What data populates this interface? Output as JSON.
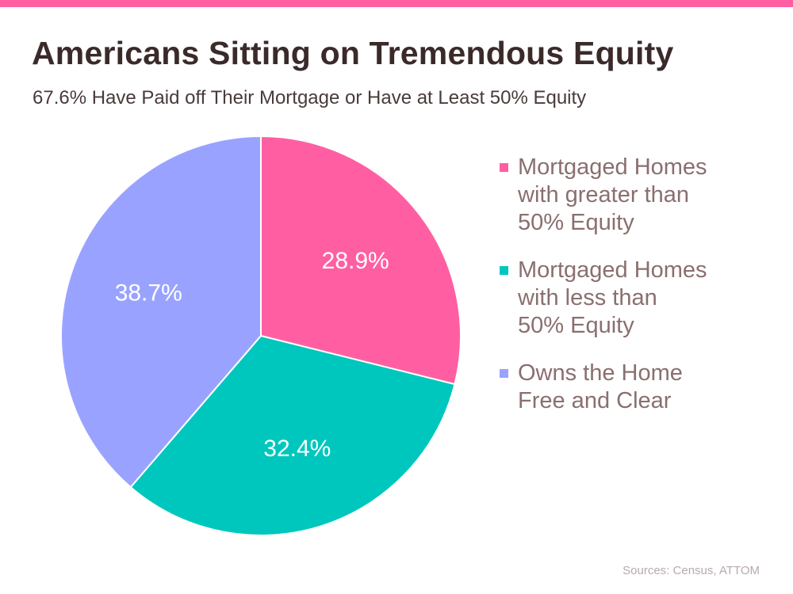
{
  "title": "Americans Sitting on Tremendous Equity",
  "subtitle": "67.6% Have Paid off Their Mortgage or Have at Least 50% Equity",
  "source": "Sources: Census, ATTOM",
  "colors": {
    "accent_bar": "#ff5fa2",
    "title": "#3a2a2a",
    "legend_text": "#8a6f6f"
  },
  "chart_data": {
    "type": "pie",
    "title": "Americans Sitting on Tremendous Equity",
    "subtitle": "67.6% Have Paid off Their Mortgage or Have at Least 50% Equity",
    "legend_position": "right",
    "start": "top, clockwise",
    "slices": [
      {
        "label": "Mortgaged Homes with greater than 50% Equity",
        "legend_text": "Mortgaged Homes\nwith greater than\n50% Equity",
        "value": 28.9,
        "display": "28.9%",
        "color": "#ff5fa2"
      },
      {
        "label": "Mortgaged Homes with less than 50% Equity",
        "legend_text": "Mortgaged Homes\nwith less than\n50% Equity",
        "value": 32.4,
        "display": "32.4%",
        "color": "#00c7bd"
      },
      {
        "label": "Owns the Home Free and Clear",
        "legend_text": "Owns the Home\nFree and Clear",
        "value": 38.7,
        "display": "38.7%",
        "color": "#99a3ff"
      }
    ]
  }
}
